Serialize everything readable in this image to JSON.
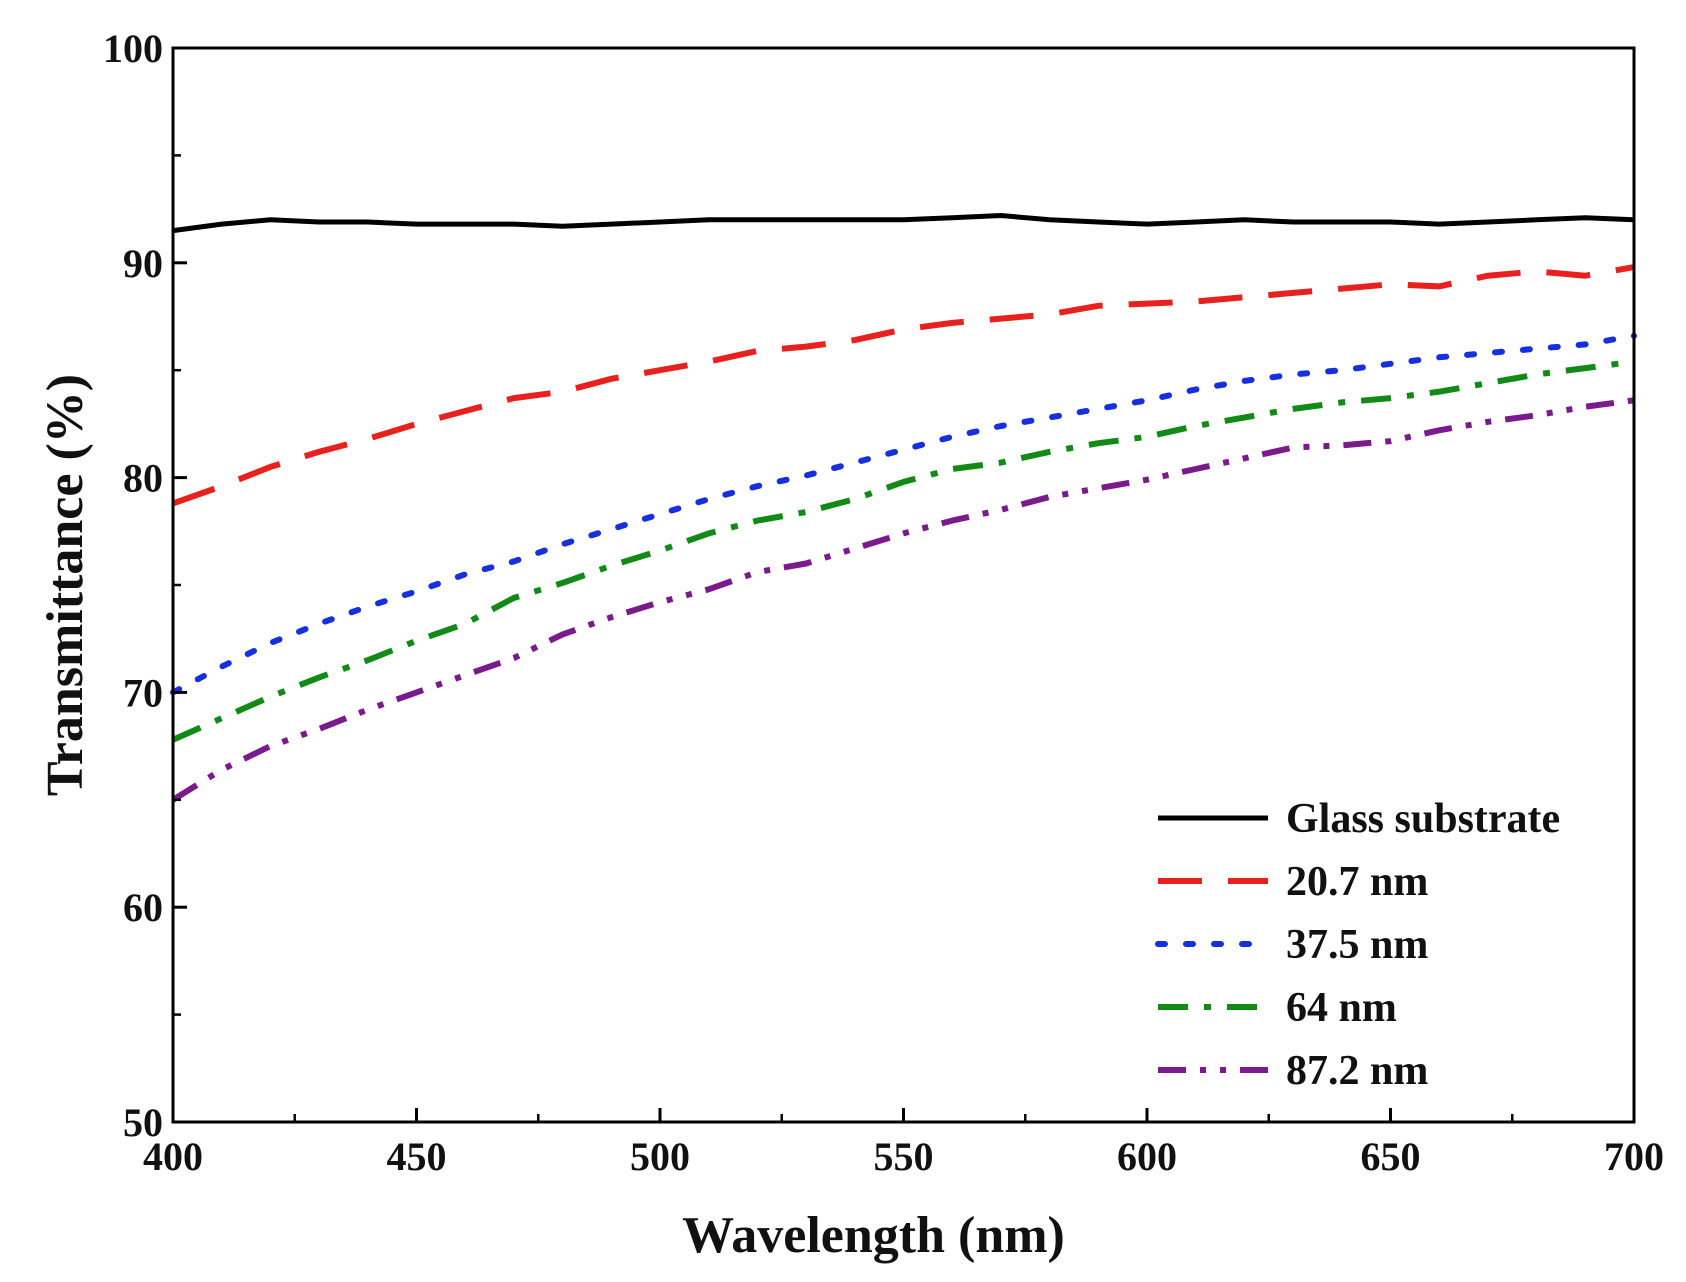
{
  "chart_data": {
    "type": "line",
    "title": "",
    "xlabel": "Wavelength (nm)",
    "ylabel": "Transmittance (%)",
    "xlim": [
      400,
      700
    ],
    "ylim": [
      50,
      100
    ],
    "xticks": [
      400,
      450,
      500,
      550,
      600,
      650,
      700
    ],
    "xtick_labels": [
      "400",
      "450",
      "500",
      "550",
      "600",
      "650",
      "700"
    ],
    "yticks": [
      50,
      60,
      70,
      80,
      90,
      100
    ],
    "ytick_labels": [
      "50",
      "60",
      "70",
      "80",
      "90",
      "100"
    ],
    "grid": false,
    "legend_position": "bottom-right",
    "x": [
      400,
      410,
      420,
      430,
      440,
      450,
      460,
      470,
      480,
      490,
      500,
      510,
      520,
      530,
      540,
      550,
      560,
      570,
      580,
      590,
      600,
      610,
      620,
      630,
      640,
      650,
      660,
      670,
      680,
      690,
      700
    ],
    "series": [
      {
        "name": "Glass substrate",
        "color": "#000000",
        "dash": "solid",
        "values": [
          91.5,
          91.8,
          92.0,
          91.9,
          91.9,
          91.8,
          91.8,
          91.8,
          91.7,
          91.8,
          91.9,
          92.0,
          92.0,
          92.0,
          92.0,
          92.0,
          92.1,
          92.2,
          92.0,
          91.9,
          91.8,
          91.9,
          92.0,
          91.9,
          91.9,
          91.9,
          91.8,
          91.9,
          92.0,
          92.1,
          92.0
        ]
      },
      {
        "name": "20.7 nm",
        "color": "#e8201e",
        "dash": "dashed",
        "values": [
          78.8,
          79.6,
          80.5,
          81.2,
          81.8,
          82.5,
          83.1,
          83.7,
          84.0,
          84.6,
          85.0,
          85.4,
          85.9,
          86.1,
          86.4,
          86.9,
          87.2,
          87.4,
          87.6,
          88.0,
          88.1,
          88.2,
          88.4,
          88.6,
          88.8,
          89.0,
          88.9,
          89.4,
          89.6,
          89.4,
          89.8
        ]
      },
      {
        "name": "37.5 nm",
        "color": "#1530dc",
        "dash": "dotted",
        "values": [
          70.0,
          71.2,
          72.3,
          73.2,
          74.0,
          74.7,
          75.5,
          76.1,
          76.9,
          77.6,
          78.3,
          79.0,
          79.6,
          80.1,
          80.7,
          81.3,
          81.9,
          82.4,
          82.8,
          83.2,
          83.6,
          84.1,
          84.5,
          84.8,
          85.0,
          85.3,
          85.6,
          85.8,
          86.0,
          86.2,
          86.6
        ]
      },
      {
        "name": "64 nm",
        "color": "#128a16",
        "dash": "dash-dot",
        "values": [
          67.8,
          68.8,
          69.8,
          70.7,
          71.5,
          72.4,
          73.2,
          74.4,
          75.1,
          75.9,
          76.6,
          77.4,
          78.0,
          78.4,
          79.0,
          79.8,
          80.4,
          80.7,
          81.2,
          81.6,
          81.9,
          82.4,
          82.8,
          83.2,
          83.5,
          83.7,
          84.0,
          84.4,
          84.8,
          85.1,
          85.4
        ]
      },
      {
        "name": "87.2 nm",
        "color": "#7b1a8c",
        "dash": "dash-dot-dot",
        "values": [
          65.0,
          66.4,
          67.5,
          68.3,
          69.2,
          70.0,
          70.8,
          71.6,
          72.7,
          73.5,
          74.2,
          74.8,
          75.6,
          76.0,
          76.7,
          77.4,
          78.0,
          78.5,
          79.1,
          79.5,
          79.9,
          80.4,
          80.9,
          81.4,
          81.5,
          81.7,
          82.2,
          82.6,
          82.9,
          83.3,
          83.6
        ]
      }
    ]
  }
}
